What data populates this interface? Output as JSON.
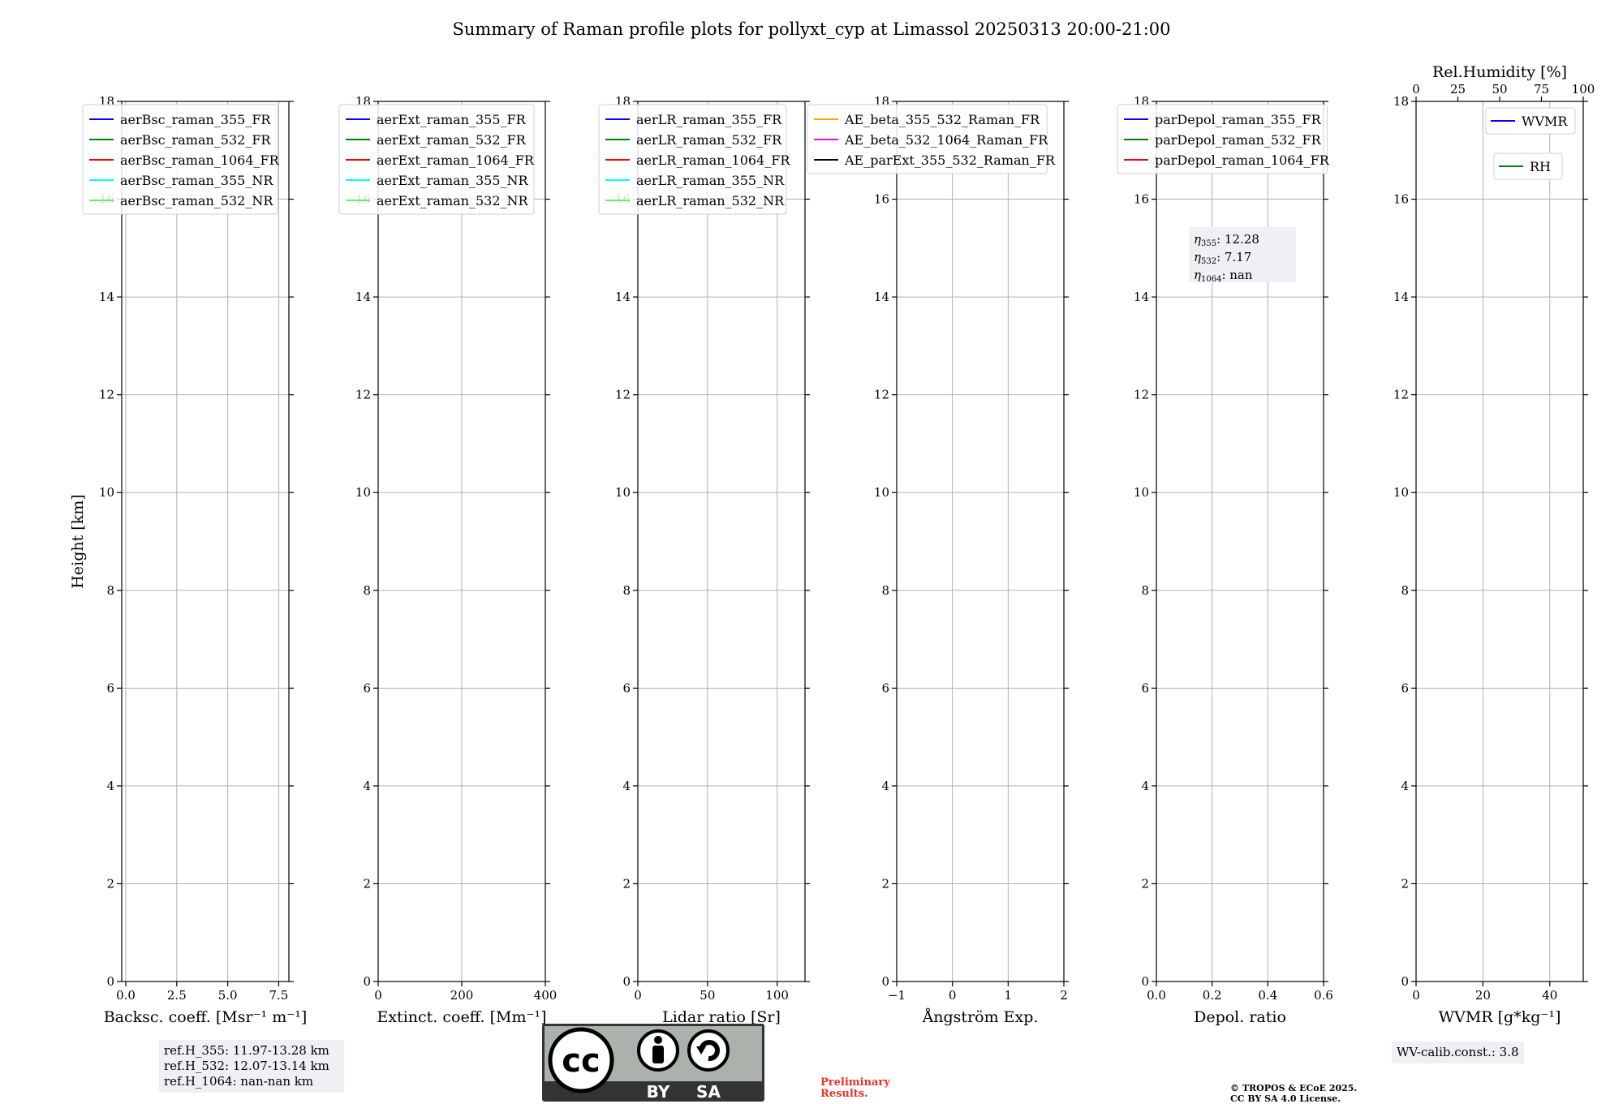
{
  "figure_title": "Summary of Raman profile plots for pollyxt_cyp at Limassol 20250313 20:00-21:00",
  "colors": {
    "c355": "#0000ff",
    "c532": "#008000",
    "c1064": "#ff0000",
    "c355nr": "#00ffff",
    "c532nr": "#66ee66",
    "ae1": "#ffa500",
    "ae2": "#ff00ff",
    "ae3": "#000000"
  },
  "chart_data": [
    {
      "type": "line",
      "id": "bsc",
      "xlabel": "Backsc. coeff. [Msr⁻¹ m⁻¹]",
      "ylabel": "Height [km]",
      "xlim": [
        -0.2,
        8
      ],
      "ylim": [
        0,
        18
      ],
      "xticks": [
        0,
        2.5,
        5,
        7.5
      ],
      "xticklabels": [
        "0.0",
        "2.5",
        "5.0",
        "7.5"
      ],
      "yticks": [
        0,
        2,
        4,
        6,
        8,
        10,
        12,
        14,
        16,
        18
      ],
      "grid": true,
      "legend": "top-left",
      "series": [
        {
          "name": "aerBsc_raman_355_FR",
          "color": "#0000ff"
        },
        {
          "name": "aerBsc_raman_532_FR",
          "color": "#008000"
        },
        {
          "name": "aerBsc_raman_1064_FR",
          "color": "#ff0000"
        },
        {
          "name": "aerBsc_raman_355_NR",
          "color": "#00ffff"
        },
        {
          "name": "aerBsc_raman_532_NR",
          "color": "#66ee66"
        }
      ]
    },
    {
      "type": "line",
      "id": "ext",
      "xlabel": "Extinct. coeff. [Mm⁻¹]",
      "ylabel": "",
      "xlim": [
        0,
        400
      ],
      "ylim": [
        0,
        18
      ],
      "xticks": [
        0,
        200,
        400
      ],
      "xticklabels": [
        "0",
        "200",
        "400"
      ],
      "yticks": [
        0,
        2,
        4,
        6,
        8,
        10,
        12,
        14,
        16,
        18
      ],
      "grid": true,
      "legend": "top-left",
      "series": [
        {
          "name": "aerExt_raman_355_FR",
          "color": "#0000ff"
        },
        {
          "name": "aerExt_raman_532_FR",
          "color": "#008000"
        },
        {
          "name": "aerExt_raman_1064_FR",
          "color": "#ff0000"
        },
        {
          "name": "aerExt_raman_355_NR",
          "color": "#00ffff"
        },
        {
          "name": "aerExt_raman_532_NR",
          "color": "#66ee66"
        }
      ]
    },
    {
      "type": "line",
      "id": "lr",
      "xlabel": "Lidar ratio [Sr]",
      "ylabel": "",
      "xlim": [
        0,
        120
      ],
      "ylim": [
        0,
        18
      ],
      "xticks": [
        0,
        50,
        100
      ],
      "xticklabels": [
        "0",
        "50",
        "100"
      ],
      "yticks": [
        0,
        2,
        4,
        6,
        8,
        10,
        12,
        14,
        16,
        18
      ],
      "grid": true,
      "legend": "top-left",
      "series": [
        {
          "name": "aerLR_raman_355_FR",
          "color": "#0000ff"
        },
        {
          "name": "aerLR_raman_532_FR",
          "color": "#008000"
        },
        {
          "name": "aerLR_raman_1064_FR",
          "color": "#ff0000"
        },
        {
          "name": "aerLR_raman_355_NR",
          "color": "#00ffff"
        },
        {
          "name": "aerLR_raman_532_NR",
          "color": "#66ee66"
        }
      ]
    },
    {
      "type": "line",
      "id": "ae",
      "xlabel": "Ångström Exp.",
      "ylabel": "",
      "xlim": [
        -1,
        2
      ],
      "ylim": [
        0,
        18
      ],
      "xticks": [
        -1,
        0,
        1,
        2
      ],
      "xticklabels": [
        "−1",
        "0",
        "1",
        "2"
      ],
      "yticks": [
        0,
        2,
        4,
        6,
        8,
        10,
        12,
        14,
        16,
        18
      ],
      "grid": true,
      "legend": "top-left",
      "series": [
        {
          "name": "AE_beta_355_532_Raman_FR",
          "color": "#ffa500"
        },
        {
          "name": "AE_beta_532_1064_Raman_FR",
          "color": "#ff00ff"
        },
        {
          "name": "AE_parExt_355_532_Raman_FR",
          "color": "#000000"
        }
      ]
    },
    {
      "type": "line",
      "id": "depol",
      "xlabel": "Depol. ratio",
      "ylabel": "",
      "xlim": [
        0,
        0.6
      ],
      "ylim": [
        0,
        18
      ],
      "xticks": [
        0,
        0.2,
        0.4,
        0.6
      ],
      "xticklabels": [
        "0.0",
        "0.2",
        "0.4",
        "0.6"
      ],
      "yticks": [
        0,
        2,
        4,
        6,
        8,
        10,
        12,
        14,
        16,
        18
      ],
      "grid": true,
      "legend": "top-left",
      "annotation": {
        "eta355": "12.28",
        "eta532": "7.17",
        "eta1064": "nan"
      },
      "series": [
        {
          "name": "parDepol_raman_355_FR",
          "color": "#0000ff"
        },
        {
          "name": "parDepol_raman_532_FR",
          "color": "#008000"
        },
        {
          "name": "parDepol_raman_1064_FR",
          "color": "#ff0000"
        }
      ]
    },
    {
      "type": "line",
      "id": "wv",
      "xlabel": "WVMR [g*kg⁻¹]",
      "ylabel": "",
      "xlim": [
        0,
        50
      ],
      "ylim": [
        0,
        18
      ],
      "xticks": [
        0,
        20,
        40
      ],
      "xticklabels": [
        "0",
        "20",
        "40"
      ],
      "top_xlabel": "Rel.Humidity [%]",
      "top_xlim": [
        0,
        100
      ],
      "top_xticks": [
        0,
        25,
        50,
        75,
        100
      ],
      "top_xticklabels": [
        "0",
        "25",
        "50",
        "75",
        "100"
      ],
      "yticks": [
        0,
        2,
        4,
        6,
        8,
        10,
        12,
        14,
        16,
        18
      ],
      "grid": true,
      "legend": "top-right",
      "series": [
        {
          "name": "WVMR",
          "color": "#0000ff"
        },
        {
          "name": "RH",
          "color": "#008000"
        }
      ]
    }
  ],
  "info": {
    "ref_h_355": "ref.H_355: 11.97-13.28 km",
    "ref_h_532": "ref.H_532: 12.07-13.14 km",
    "ref_h_1064": "ref.H_1064: nan-nan km",
    "wv_calib": "WV-calib.const.: 3.8",
    "preliminary_1": "Preliminary",
    "preliminary_2": "Results.",
    "copyright_1": "© TROPOS & ECoE 2025.",
    "copyright_2": "CC BY SA 4.0 License.",
    "cc_text": "cc",
    "cc_by": "BY",
    "cc_sa": "SA"
  }
}
